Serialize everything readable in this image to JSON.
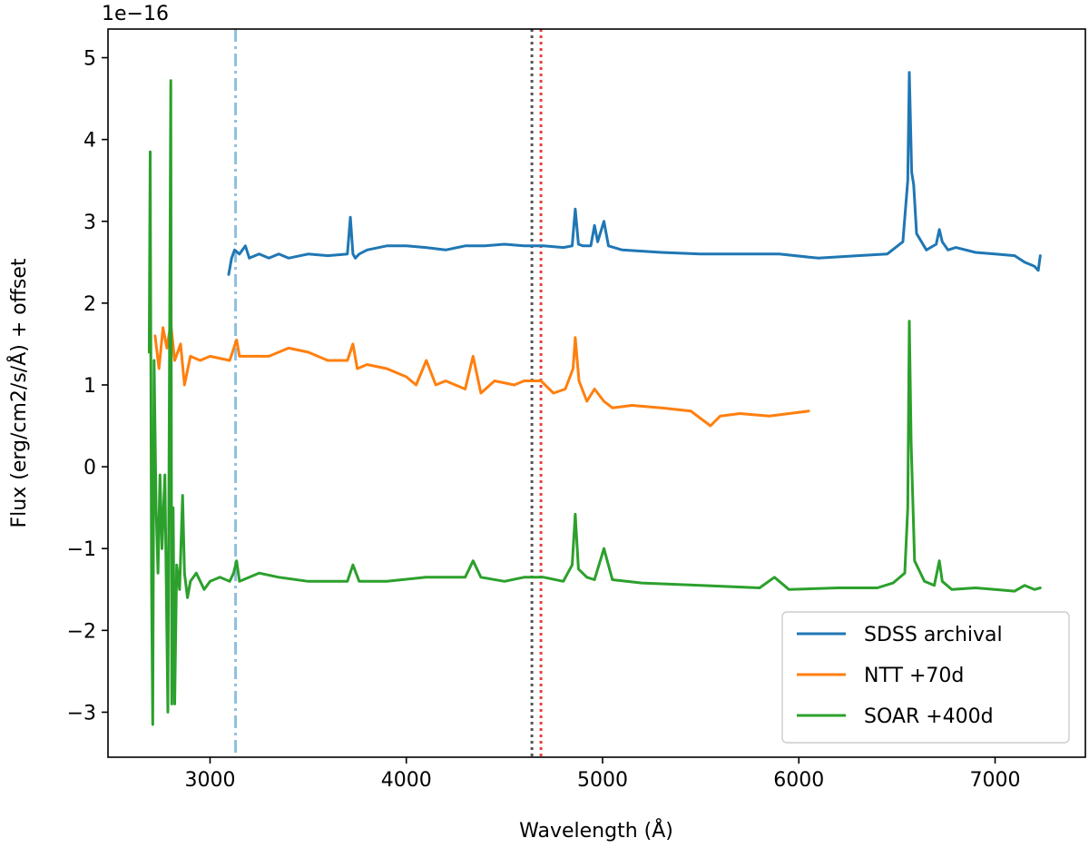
{
  "chart_data": {
    "type": "line",
    "xlabel": "Wavelength (Å)",
    "ylabel": "Flux (erg/cm2/s/Å) + offset",
    "y_offset_text": "1e−16",
    "xlim": [
      2480,
      7460
    ],
    "ylim": [
      -3.55,
      5.35
    ],
    "xticks": [
      3000,
      4000,
      5000,
      6000,
      7000
    ],
    "xtick_labels": [
      "3000",
      "4000",
      "5000",
      "6000",
      "7000"
    ],
    "yticks": [
      -3,
      -2,
      -1,
      0,
      1,
      2,
      3,
      4,
      5
    ],
    "ytick_labels": [
      "−3",
      "−2",
      "−1",
      "0",
      "1",
      "2",
      "3",
      "4",
      "5"
    ],
    "grid": false,
    "legend_position": "lower-right",
    "vlines": [
      {
        "x": 3130,
        "color": "#8fbfdf",
        "style": "dashdot"
      },
      {
        "x": 4640,
        "color": "#555555",
        "style": "dotted"
      },
      {
        "x": 4686,
        "color": "#e8413c",
        "style": "dotted"
      }
    ],
    "series": [
      {
        "name": "SDSS archival",
        "color": "#1f77b4",
        "x": [
          3095,
          3110,
          3125,
          3150,
          3180,
          3200,
          3250,
          3300,
          3350,
          3400,
          3500,
          3600,
          3700,
          3715,
          3728,
          3740,
          3760,
          3800,
          3900,
          4000,
          4100,
          4200,
          4300,
          4400,
          4500,
          4600,
          4700,
          4800,
          4845,
          4861,
          4877,
          4900,
          4940,
          4959,
          4975,
          5007,
          5030,
          5100,
          5300,
          5500,
          5700,
          5900,
          6100,
          6300,
          6450,
          6530,
          6555,
          6563,
          6575,
          6585,
          6600,
          6650,
          6700,
          6716,
          6731,
          6760,
          6800,
          6900,
          7000,
          7100,
          7150,
          7200,
          7220,
          7230
        ],
        "values": [
          2.35,
          2.55,
          2.65,
          2.6,
          2.7,
          2.55,
          2.6,
          2.55,
          2.6,
          2.55,
          2.6,
          2.58,
          2.6,
          3.05,
          2.6,
          2.55,
          2.6,
          2.65,
          2.7,
          2.7,
          2.68,
          2.65,
          2.7,
          2.7,
          2.72,
          2.7,
          2.7,
          2.68,
          2.7,
          3.15,
          2.72,
          2.7,
          2.7,
          2.95,
          2.75,
          3.0,
          2.7,
          2.65,
          2.62,
          2.6,
          2.6,
          2.6,
          2.55,
          2.58,
          2.6,
          2.75,
          3.5,
          4.82,
          3.6,
          3.45,
          2.85,
          2.65,
          2.72,
          2.9,
          2.75,
          2.65,
          2.68,
          2.62,
          2.6,
          2.58,
          2.5,
          2.45,
          2.4,
          2.58
        ]
      },
      {
        "name": "NTT +70d",
        "color": "#ff7f0e",
        "x": [
          2720,
          2740,
          2760,
          2780,
          2800,
          2820,
          2850,
          2870,
          2900,
          2950,
          3000,
          3100,
          3135,
          3150,
          3200,
          3300,
          3400,
          3500,
          3600,
          3700,
          3728,
          3750,
          3800,
          3900,
          4000,
          4050,
          4102,
          4150,
          4200,
          4300,
          4340,
          4380,
          4450,
          4550,
          4600,
          4686,
          4750,
          4810,
          4850,
          4861,
          4880,
          4920,
          4959,
          5007,
          5050,
          5150,
          5300,
          5450,
          5550,
          5600,
          5700,
          5850,
          5950,
          6050
        ],
        "values": [
          1.6,
          1.2,
          1.7,
          1.45,
          1.75,
          1.3,
          1.5,
          1.0,
          1.35,
          1.3,
          1.35,
          1.3,
          1.55,
          1.35,
          1.35,
          1.35,
          1.45,
          1.4,
          1.3,
          1.3,
          1.5,
          1.2,
          1.25,
          1.2,
          1.1,
          1.0,
          1.3,
          1.0,
          1.05,
          0.95,
          1.35,
          0.9,
          1.05,
          1.0,
          1.05,
          1.05,
          0.9,
          0.95,
          1.2,
          1.58,
          1.05,
          0.8,
          0.95,
          0.8,
          0.72,
          0.75,
          0.72,
          0.68,
          0.5,
          0.62,
          0.65,
          0.62,
          0.65,
          0.68
        ]
      },
      {
        "name": "SOAR +400d",
        "color": "#2ca02c",
        "x": [
          2690,
          2695,
          2702,
          2708,
          2715,
          2725,
          2735,
          2745,
          2755,
          2770,
          2785,
          2800,
          2805,
          2812,
          2820,
          2830,
          2845,
          2860,
          2870,
          2885,
          2900,
          2930,
          2970,
          3000,
          3050,
          3100,
          3120,
          3135,
          3150,
          3250,
          3350,
          3500,
          3700,
          3728,
          3760,
          3900,
          4100,
          4300,
          4340,
          4380,
          4500,
          4600,
          4700,
          4800,
          4845,
          4861,
          4877,
          4920,
          4959,
          5007,
          5050,
          5200,
          5500,
          5800,
          5876,
          5950,
          6200,
          6400,
          6480,
          6540,
          6555,
          6563,
          6572,
          6590,
          6640,
          6690,
          6716,
          6731,
          6780,
          6900,
          7000,
          7100,
          7150,
          7200,
          7230
        ],
        "values": [
          1.4,
          3.85,
          -1.4,
          -3.15,
          1.3,
          -0.5,
          -1.3,
          -0.1,
          -1.0,
          -0.1,
          -3.0,
          4.72,
          -2.9,
          -0.5,
          -2.9,
          -1.2,
          -1.5,
          -0.35,
          -1.3,
          -1.6,
          -1.4,
          -1.3,
          -1.5,
          -1.4,
          -1.35,
          -1.4,
          -1.3,
          -1.15,
          -1.4,
          -1.3,
          -1.35,
          -1.4,
          -1.4,
          -1.2,
          -1.4,
          -1.4,
          -1.35,
          -1.35,
          -1.15,
          -1.35,
          -1.4,
          -1.35,
          -1.35,
          -1.4,
          -1.2,
          -0.58,
          -1.25,
          -1.35,
          -1.38,
          -1.0,
          -1.38,
          -1.42,
          -1.45,
          -1.48,
          -1.35,
          -1.5,
          -1.48,
          -1.48,
          -1.42,
          -1.3,
          -0.5,
          1.78,
          0.3,
          -1.15,
          -1.4,
          -1.45,
          -1.15,
          -1.4,
          -1.5,
          -1.48,
          -1.5,
          -1.52,
          -1.45,
          -1.5,
          -1.48
        ]
      }
    ]
  }
}
